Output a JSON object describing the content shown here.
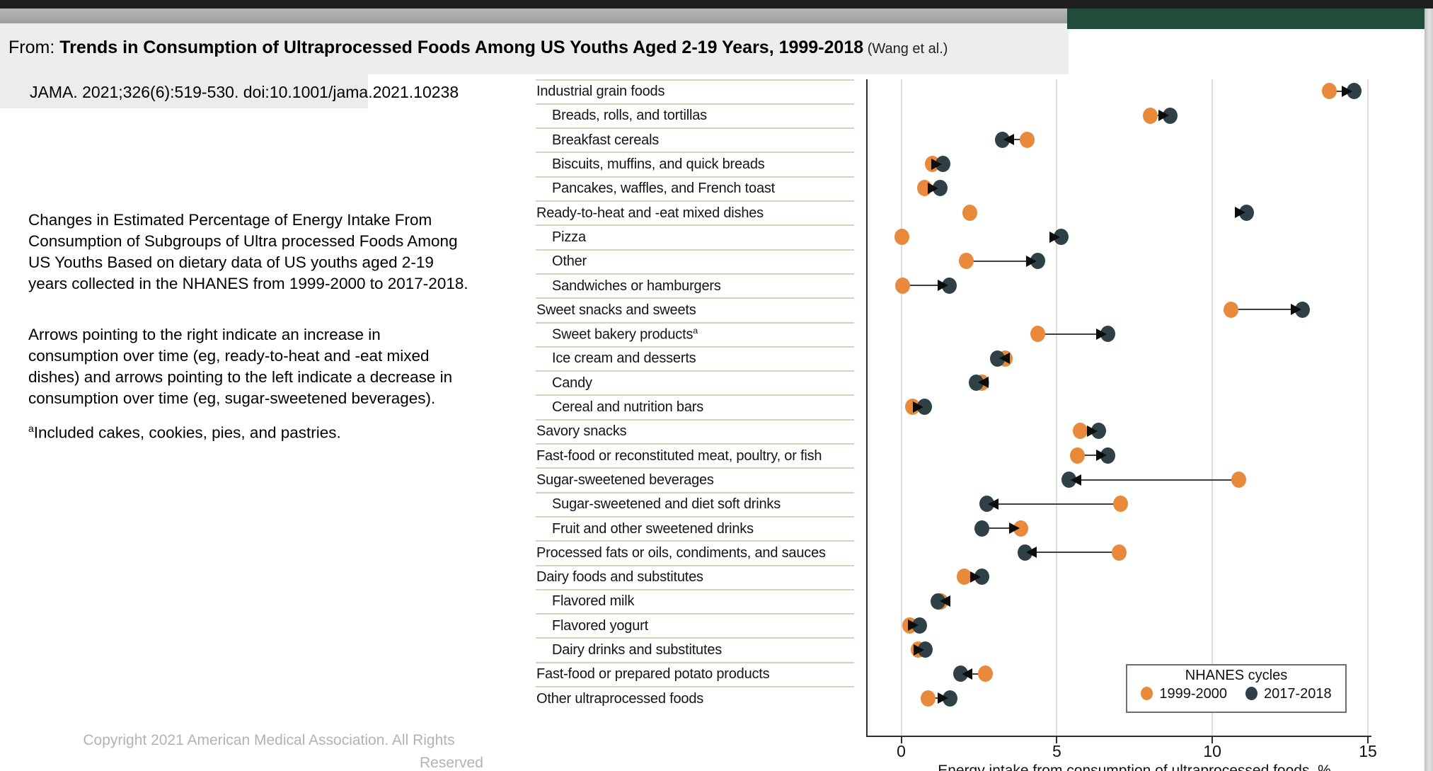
{
  "header": {
    "from_prefix": "From: ",
    "title": "Trends in Consumption of Ultraprocessed Foods Among US Youths Aged 2-19 Years, 1999-2018",
    "byline": " (Wang et al.)",
    "citation": "JAMA. 2021;326(6):519-530. doi:10.1001/jama.2021.10238"
  },
  "description": {
    "para1_lines": [
      "Changes in Estimated Percentage of Energy Intake From",
      "Consumption of Subgroups of Ultra processed Foods Among",
      "US Youths Based on dietary data of US youths aged 2-19",
      "years collected in the NHANES from 1999-2000 to 2017-2018."
    ],
    "para2_lines": [
      "Arrows pointing to the right indicate an increase in",
      "consumption over time (eg, ready-to-heat and -eat mixed",
      "dishes) and arrows pointing to the left indicate a decrease in",
      "consumption over time (eg, sugar-sweetened beverages)."
    ],
    "footnote_marker": "a",
    "footnote_text": "Included cakes, cookies, pies, and pastries."
  },
  "footer": {
    "copyright_line1": "Copyright 2021 American Medical Association. All Rights",
    "copyright_line2": "Reserved"
  },
  "colors": {
    "orange_1999": "#E8893B",
    "slate_2017": "#2F4047",
    "header_green": "#214C3A",
    "separator_tan": "#D8D1BC",
    "gridline": "#DEDEDE"
  },
  "chart_data": {
    "type": "dumbbell",
    "xlabel": "Energy intake from consumption of ultraprocessed foods, %",
    "xticks": [
      0,
      5,
      10,
      15
    ],
    "xlim": [
      -1.1,
      15.6
    ],
    "grid": "vertical",
    "legend": {
      "title": "NHANES cycles",
      "series": [
        {
          "label": "1999-2000",
          "color": "#E8893B"
        },
        {
          "label": "2017-2018",
          "color": "#2F4047"
        }
      ]
    },
    "rows": [
      {
        "label": "Industrial grain foods",
        "indent": 0,
        "v1999": 13.75,
        "v2017": 14.55,
        "arrow": "right",
        "head_on": "2017",
        "line": true
      },
      {
        "label": "Breads, rolls, and tortillas",
        "indent": 1,
        "v1999": 8.0,
        "v2017": 8.65,
        "arrow": "right",
        "head_on": "2017",
        "line": true
      },
      {
        "label": "Breakfast cereals",
        "indent": 1,
        "v1999": 4.05,
        "v2017": 3.25,
        "arrow": "left",
        "head_on": "2017",
        "line": true
      },
      {
        "label": "Biscuits, muffins, and quick breads",
        "indent": 1,
        "v1999": 1.0,
        "v2017": 1.35,
        "arrow": "right",
        "head_on": "2017",
        "line": true
      },
      {
        "label": "Pancakes, waffles, and French toast",
        "indent": 1,
        "v1999": 0.75,
        "v2017": 1.25,
        "arrow": "right",
        "head_on": "2017",
        "line": true
      },
      {
        "label": "Ready-to-heat and -eat mixed dishes",
        "indent": 0,
        "v1999": 2.2,
        "v2017": 11.1,
        "arrow": "right",
        "head_on": "2017",
        "line": false
      },
      {
        "label": "Pizza",
        "indent": 1,
        "v1999": 0.02,
        "v2017": 5.15,
        "arrow": "right",
        "head_on": "2017",
        "line": false
      },
      {
        "label": "Other",
        "indent": 1,
        "v1999": 2.1,
        "v2017": 4.4,
        "arrow": "right",
        "head_on": "2017",
        "line": true
      },
      {
        "label": "Sandwiches or hamburgers",
        "indent": 1,
        "v1999": 0.05,
        "v2017": 1.55,
        "arrow": "right",
        "head_on": "2017",
        "line": true
      },
      {
        "label": "Sweet snacks and sweets",
        "indent": 0,
        "v1999": 10.6,
        "v2017": 12.9,
        "arrow": "right",
        "head_on": "2017",
        "line": true
      },
      {
        "label": "Sweet bakery products",
        "label_sup": "a",
        "indent": 1,
        "v1999": 4.4,
        "v2017": 6.65,
        "arrow": "right",
        "head_on": "2017",
        "line": true
      },
      {
        "label": "Ice cream and desserts",
        "indent": 1,
        "v1999": 3.35,
        "v2017": 3.1,
        "arrow": "left",
        "head_on": "2017",
        "line": true
      },
      {
        "label": "Candy",
        "indent": 1,
        "v1999": 2.6,
        "v2017": 2.42,
        "arrow": "left",
        "head_on": "2017",
        "line": true
      },
      {
        "label": "Cereal and nutrition bars",
        "indent": 1,
        "v1999": 0.37,
        "v2017": 0.76,
        "arrow": "right",
        "head_on": "2017",
        "line": true
      },
      {
        "label": "Savory snacks",
        "indent": 0,
        "v1999": 5.75,
        "v2017": 6.35,
        "arrow": "right",
        "head_on": "2017",
        "line": true
      },
      {
        "label": "Fast-food or reconstituted meat, poultry, or fish",
        "indent": 0,
        "v1999": 5.67,
        "v2017": 6.65,
        "arrow": "right",
        "head_on": "2017",
        "line": true
      },
      {
        "label": "Sugar-sweetened beverages",
        "indent": 0,
        "v1999": 10.85,
        "v2017": 5.4,
        "arrow": "left",
        "head_on": "2017",
        "line": true
      },
      {
        "label": "Sugar-sweetened and diet soft drinks",
        "indent": 1,
        "v1999": 7.05,
        "v2017": 2.75,
        "arrow": "left",
        "head_on": "2017",
        "line": true
      },
      {
        "label": "Fruit and other sweetened drinks",
        "indent": 1,
        "v1999": 3.85,
        "v2017": 2.6,
        "arrow": "right",
        "head_on": "1999",
        "line": true
      },
      {
        "label": "Processed fats or oils, condiments, and sauces",
        "indent": 0,
        "v1999": 7.0,
        "v2017": 3.97,
        "arrow": "left",
        "head_on": "2017",
        "line": true
      },
      {
        "label": "Dairy foods and substitutes",
        "indent": 0,
        "v1999": 2.03,
        "v2017": 2.6,
        "arrow": "right",
        "head_on": "2017",
        "line": true
      },
      {
        "label": "Flavored milk",
        "indent": 1,
        "v1999": 1.28,
        "v2017": 1.19,
        "arrow": "left",
        "head_on": "2017",
        "line": true
      },
      {
        "label": "Flavored yogurt",
        "indent": 1,
        "v1999": 0.28,
        "v2017": 0.6,
        "arrow": "right",
        "head_on": "2017",
        "line": true
      },
      {
        "label": "Dairy drinks and substitutes",
        "indent": 1,
        "v1999": 0.55,
        "v2017": 0.78,
        "arrow": "right",
        "head_on": "2017",
        "line": true
      },
      {
        "label": "Fast-food or prepared potato products",
        "indent": 0,
        "v1999": 2.7,
        "v2017": 1.9,
        "arrow": "left",
        "head_on": "2017",
        "line": true
      },
      {
        "label": "Other ultraprocessed foods",
        "indent": 0,
        "v1999": 0.87,
        "v2017": 1.56,
        "arrow": "right",
        "head_on": "2017",
        "line": true
      }
    ]
  }
}
